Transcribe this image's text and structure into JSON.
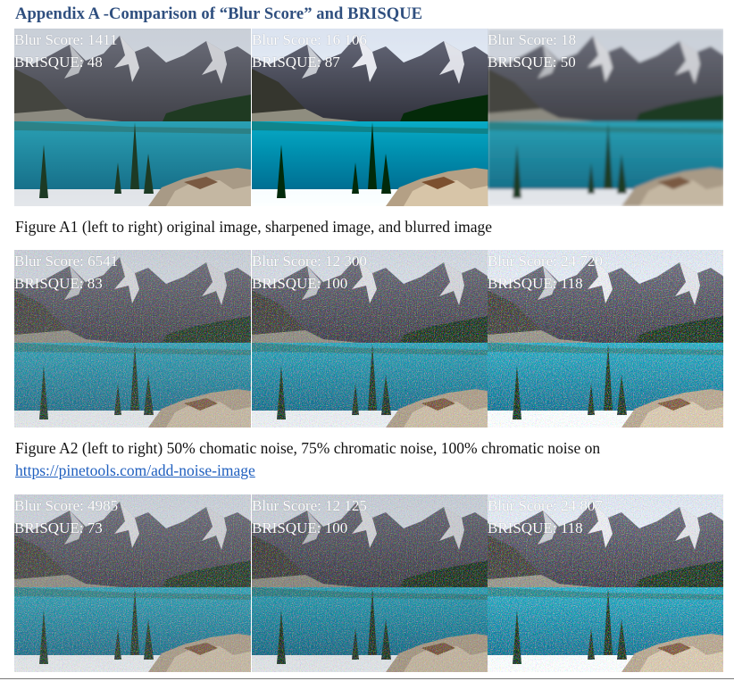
{
  "heading": "Appendix A -Comparison of “Blur Score” and BRISQUE",
  "rows": [
    {
      "panels": [
        {
          "blur": "Blur Score: 1411",
          "brisque": "BRISQUE: 48"
        },
        {
          "blur": "Blur Score: 16 106",
          "brisque": "BRISQUE: 87"
        },
        {
          "blur": "Blur Score: 18",
          "brisque": "BRISQUE: 50"
        }
      ]
    },
    {
      "panels": [
        {
          "blur": "Blur Score: 6541",
          "brisque": "BRISQUE: 83"
        },
        {
          "blur": "Blur Score: 12 300",
          "brisque": "BRISQUE: 100"
        },
        {
          "blur": "Blur Score: 24 720",
          "brisque": "BRISQUE: 118"
        }
      ]
    },
    {
      "panels": [
        {
          "blur": "Blur Score: 4985",
          "brisque": "BRISQUE: 73"
        },
        {
          "blur": "Blur Score: 12 125",
          "brisque": "BRISQUE: 100"
        },
        {
          "blur": "Blur Score: 24 807",
          "brisque": "BRISQUE: 118"
        }
      ]
    }
  ],
  "captions": {
    "fig_a1": "Figure A1 (left to right) original image, sharpened image, and blurred image",
    "fig_a2": "Figure A2 (left to right) 50% chomatic noise, 75% chromatic noise, 100% chromatic noise on",
    "fig_a2_link": "https://pinetools.com/add-noise-image"
  },
  "colors": {
    "heading": "#2f4f7f",
    "link": "#1f5fbf",
    "lake": "#1f8aa0",
    "sky": "#cfd6de",
    "mountain": "#5b5d68",
    "forest": "#1f3a22"
  }
}
